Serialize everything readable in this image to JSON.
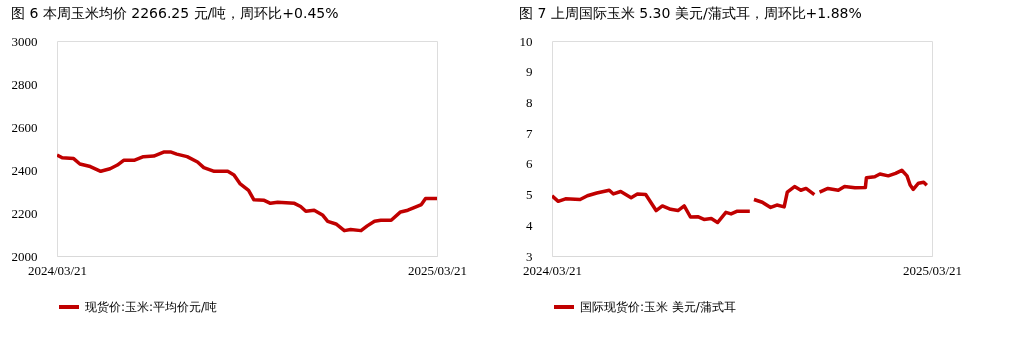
{
  "chart_data": [
    {
      "type": "line",
      "title": "图 6  本周玉米均价 2266.25 元/吨，周环比+0.45%",
      "x": [
        "2024-03-21",
        "2024-03-26",
        "2024-04-06",
        "2024-04-12",
        "2024-04-22",
        "2024-05-02",
        "2024-05-11",
        "2024-05-18",
        "2024-05-24",
        "2024-06-03",
        "2024-06-12",
        "2024-06-22",
        "2024-07-02",
        "2024-07-08",
        "2024-07-14",
        "2024-07-24",
        "2024-08-03",
        "2024-08-09",
        "2024-08-19",
        "2024-09-01",
        "2024-09-07",
        "2024-09-13",
        "2024-09-21",
        "2024-09-26",
        "2024-10-06",
        "2024-10-12",
        "2024-10-19",
        "2024-11-04",
        "2024-11-10",
        "2024-11-15",
        "2024-11-23",
        "2024-12-01",
        "2024-12-06",
        "2024-12-14",
        "2024-12-22",
        "2024-12-28",
        "2025-01-07",
        "2025-01-13",
        "2025-01-20",
        "2025-01-26",
        "2025-02-05",
        "2025-02-14",
        "2025-02-21",
        "2025-02-27",
        "2025-03-06",
        "2025-03-10",
        "2025-03-21"
      ],
      "series": [
        {
          "name": "现货价:玉米:平均价元/吨",
          "color": "#c00000",
          "values": [
            2470,
            2457,
            2453,
            2428,
            2416,
            2394,
            2406,
            2423,
            2445,
            2445,
            2462,
            2465,
            2484,
            2484,
            2474,
            2462,
            2437,
            2411,
            2394,
            2394,
            2377,
            2335,
            2305,
            2262,
            2259,
            2245,
            2250,
            2245,
            2230,
            2208,
            2213,
            2191,
            2161,
            2149,
            2118,
            2123,
            2118,
            2140,
            2162,
            2166,
            2166,
            2205,
            2213,
            2225,
            2239,
            2267,
            2267
          ]
        }
      ],
      "xlim": [
        "2024-03-21",
        "2025-03-21"
      ],
      "xticks": [
        {
          "value": "2024-03-21",
          "label": "2024/03/21"
        },
        {
          "value": "2025-03-21",
          "label": "2025/03/21"
        }
      ],
      "ylim": [
        2000,
        3000
      ],
      "yticks": [
        2000,
        2200,
        2400,
        2600,
        2800,
        3000
      ],
      "grid": false,
      "legend": "bottom"
    },
    {
      "type": "line",
      "title": "图 7 上周国际玉米 5.30 美元/蒲式耳，周环比+1.88%",
      "x": [
        "2024-03-21",
        "2024-03-27",
        "2024-04-03",
        "2024-04-17",
        "2024-04-24",
        "2024-05-03",
        "2024-05-15",
        "2024-05-19",
        "2024-05-26",
        "2024-06-05",
        "2024-06-11",
        "2024-06-19",
        "2024-06-29",
        "2024-07-05",
        "2024-07-13",
        "2024-07-20",
        "2024-07-26",
        "2024-08-01",
        "2024-08-08",
        "2024-08-14",
        "2024-08-21",
        "2024-08-27",
        "2024-09-04",
        "2024-09-09",
        "2024-09-15",
        "2024-09-27",
        "2024-09-30",
        "2024-10-01",
        "2024-10-09",
        "2024-10-17",
        "2024-10-23",
        "2024-10-30",
        "2024-11-02",
        "2024-11-09",
        "2024-11-15",
        "2024-11-20",
        "2024-11-28",
        "2024-11-30",
        "2024-12-03",
        "2024-12-11",
        "2024-12-21",
        "2024-12-27",
        "2025-01-06",
        "2025-01-16",
        "2025-01-17",
        "2025-01-25",
        "2025-01-30",
        "2025-02-07",
        "2025-02-14",
        "2025-02-20",
        "2025-02-25",
        "2025-02-28",
        "2025-03-03",
        "2025-03-08",
        "2025-03-13",
        "2025-03-16"
      ],
      "series": [
        {
          "name": "国际现货价:玉米 美元/蒲式耳",
          "color": "#c00000",
          "values": [
            4.96,
            4.78,
            4.86,
            4.84,
            4.96,
            5.05,
            5.14,
            5.02,
            5.1,
            4.9,
            5.02,
            5.0,
            4.48,
            4.63,
            4.52,
            4.48,
            4.63,
            4.27,
            4.28,
            4.19,
            4.22,
            4.09,
            4.42,
            4.37,
            4.46,
            4.46,
            null,
            4.84,
            4.75,
            4.58,
            4.66,
            4.6,
            5.08,
            5.26,
            5.14,
            5.2,
            5.0,
            null,
            5.08,
            5.2,
            5.14,
            5.26,
            5.22,
            5.23,
            5.55,
            5.58,
            5.67,
            5.61,
            5.69,
            5.79,
            5.61,
            5.31,
            5.17,
            5.37,
            5.4,
            5.3
          ]
        }
      ],
      "xlim": [
        "2024-03-21",
        "2025-03-21"
      ],
      "xticks": [
        {
          "value": "2024-03-21",
          "label": "2024/03/21"
        },
        {
          "value": "2025-03-21",
          "label": "2025/03/21"
        }
      ],
      "ylim": [
        3,
        10
      ],
      "yticks": [
        3,
        4,
        5,
        6,
        7,
        8,
        9,
        10
      ],
      "grid": false,
      "legend": "bottom"
    }
  ]
}
